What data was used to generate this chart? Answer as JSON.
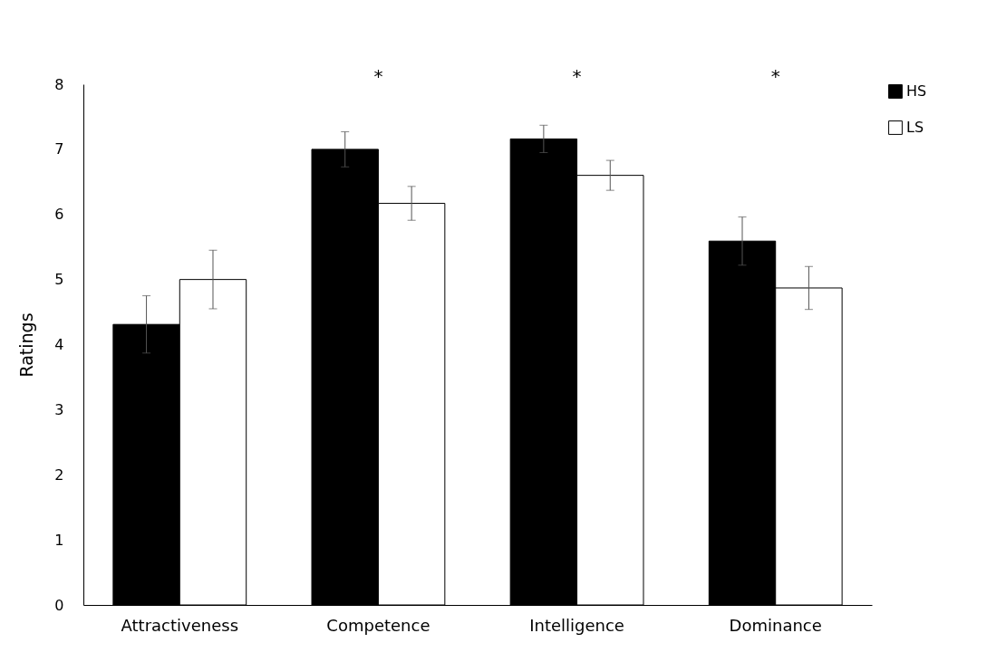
{
  "chart_data": {
    "type": "bar",
    "ylabel": "Ratings",
    "categories": [
      "Attractiveness",
      "Competence",
      "Intelligence",
      "Dominance"
    ],
    "series": [
      {
        "name": "HS",
        "color": "#000000",
        "values": [
          4.31,
          7.0,
          7.16,
          5.59
        ],
        "errors": [
          0.44,
          0.27,
          0.21,
          0.37
        ]
      },
      {
        "name": "LS",
        "color": "#ffffff",
        "values": [
          5.0,
          6.17,
          6.6,
          4.87
        ],
        "errors": [
          0.45,
          0.26,
          0.23,
          0.33
        ]
      }
    ],
    "ylim": [
      0,
      8
    ],
    "yticks": [
      0,
      1,
      2,
      3,
      4,
      5,
      6,
      7,
      8
    ],
    "grid": false,
    "legend": "right",
    "annotations": [
      "*",
      "*",
      "*"
    ]
  }
}
